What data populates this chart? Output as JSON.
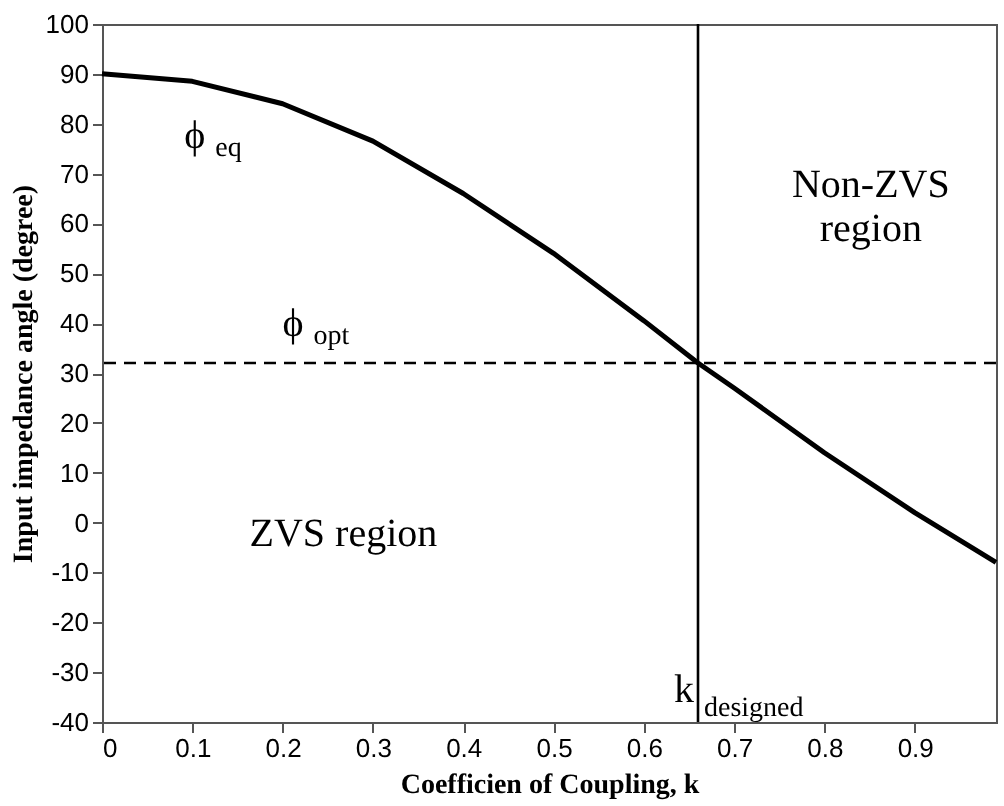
{
  "chart_data": {
    "type": "line",
    "xlabel": "Coefficien of Coupling, k",
    "ylabel": "Input impedance angle (degree)",
    "x": [
      0,
      0.1,
      0.2,
      0.3,
      0.4,
      0.5,
      0.6,
      0.66,
      0.7,
      0.8,
      0.9,
      0.99
    ],
    "series": [
      {
        "color": "#000000",
        "values": [
          90,
          88.5,
          84,
          76.5,
          66,
          54,
          40.5,
          32,
          27,
          14,
          2,
          -8
        ]
      }
    ],
    "xlim": [
      0,
      0.99
    ],
    "xticks": [
      0,
      0.1,
      0.2,
      0.3,
      0.4,
      0.5,
      0.6,
      0.7,
      0.8,
      0.9
    ],
    "ylim": [
      -40,
      100
    ],
    "yticks": [
      -40,
      -30,
      -20,
      -10,
      0,
      10,
      20,
      30,
      40,
      50,
      60,
      70,
      80,
      90,
      100
    ],
    "grid": false,
    "marker": "none",
    "line_style": "solid",
    "ref_lines": [
      {
        "axis": "y",
        "value": 32,
        "color": "#000000",
        "line_style": "dashed"
      },
      {
        "axis": "x",
        "value": 0.66,
        "label": "k$_{designed}$",
        "color": "#000000",
        "line_style": "solid"
      }
    ],
    "annotations": [
      "ϕ$_{eq}$",
      "ϕ$_{opt}$",
      "Non-ZVS\nregion",
      "ZVS region"
    ]
  }
}
